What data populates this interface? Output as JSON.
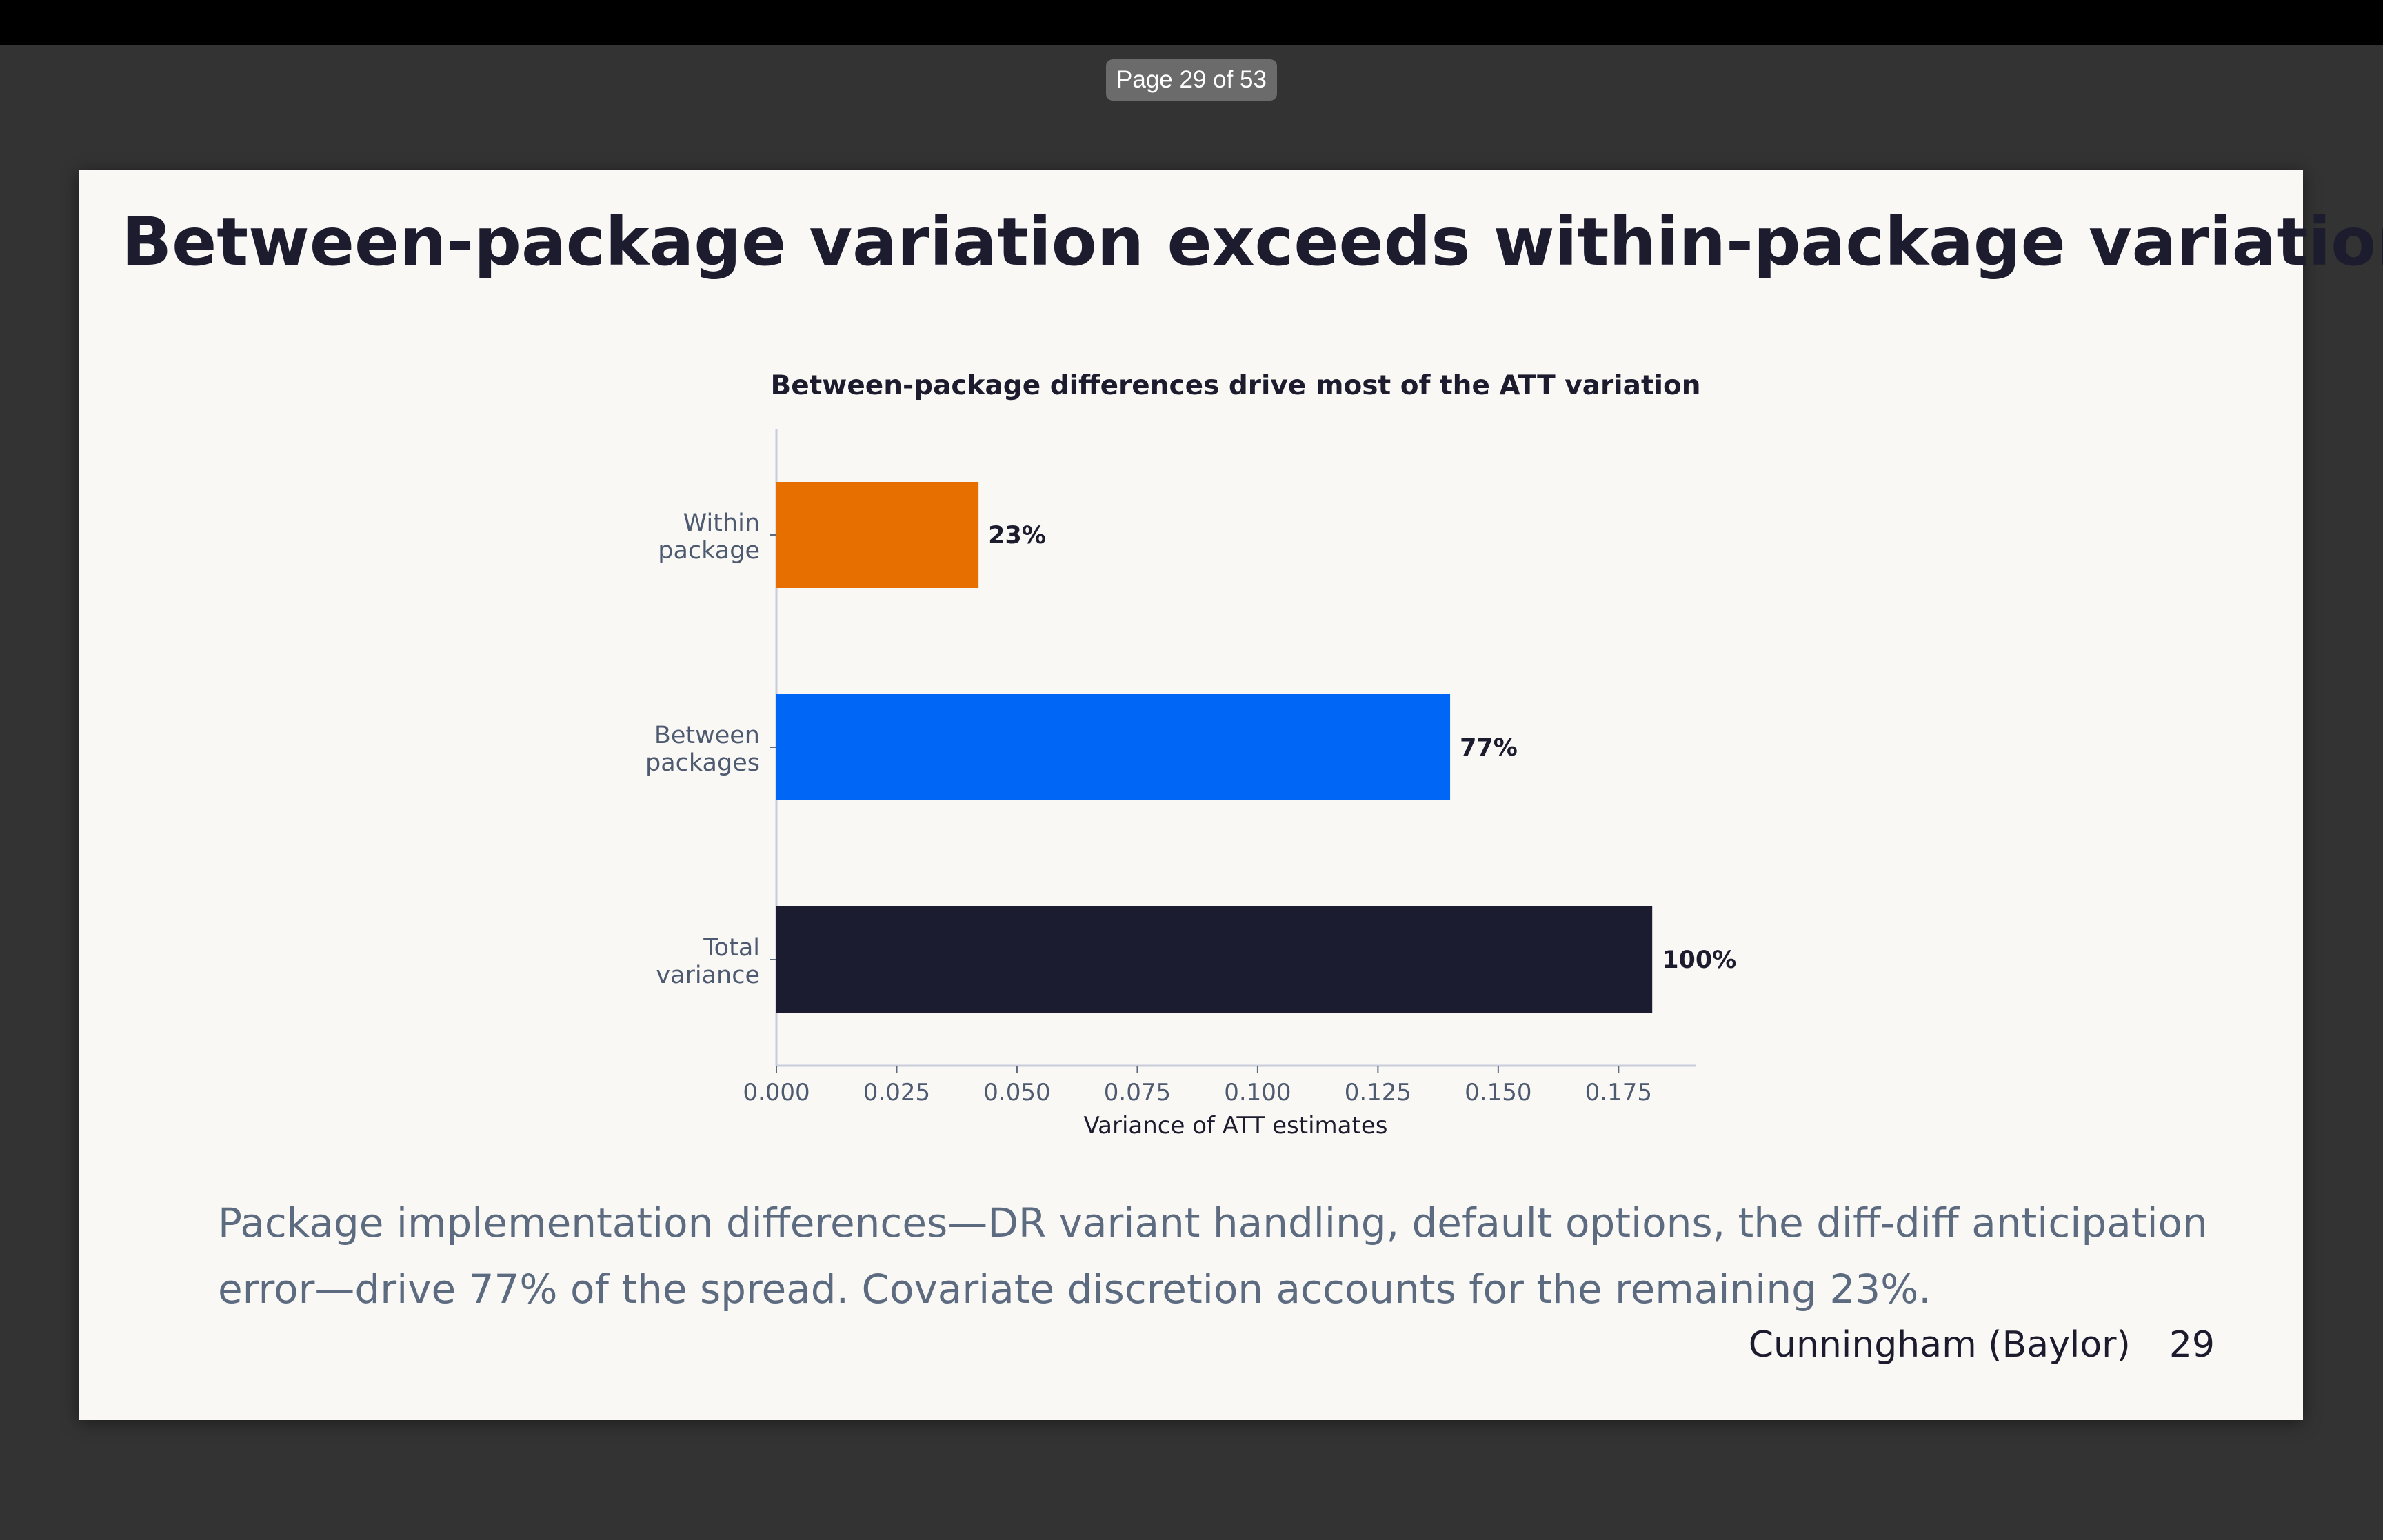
{
  "viewer": {
    "page_indicator": "Page 29 of 53"
  },
  "slide": {
    "title": "Between-package variation exceeds within-package variation",
    "body": "Package implementation differences—DR variant handling, default options, the diff-diff anticipation error—drive 77% of the spread.  Covariate discretion accounts for the remaining 23%.",
    "footer_author": "Cunningham (Baylor)",
    "footer_page": "29"
  },
  "chart_data": {
    "type": "bar",
    "orientation": "horizontal",
    "title": "Between-package differences drive most of the ATT variation",
    "xlabel": "Variance of ATT estimates",
    "ylabel": "",
    "xlim": [
      0,
      0.191
    ],
    "xticks": [
      "0.000",
      "0.025",
      "0.050",
      "0.075",
      "0.100",
      "0.125",
      "0.150",
      "0.175"
    ],
    "categories": [
      {
        "line1": "Within",
        "line2": "package"
      },
      {
        "line1": "Between",
        "line2": "packages"
      },
      {
        "line1": "Total",
        "line2": "variance"
      }
    ],
    "values": [
      0.042,
      0.14,
      0.182
    ],
    "bar_labels": [
      "23%",
      "77%",
      "100%"
    ],
    "colors": [
      "#e66f00",
      "#0066f5",
      "#1b1c30"
    ]
  }
}
